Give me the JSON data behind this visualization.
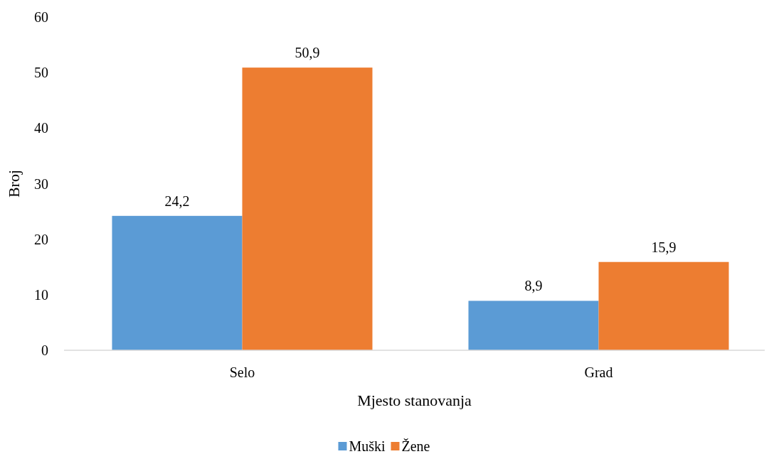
{
  "chart_data": {
    "type": "bar",
    "xlabel": "Mjesto stanovanja",
    "ylabel": "Broj",
    "categories": [
      "Selo",
      "Grad"
    ],
    "series": [
      {
        "name": "Muški",
        "color": "#5b9bd5",
        "values": [
          24.2,
          8.9
        ],
        "value_labels": [
          "24,2",
          "8,9"
        ]
      },
      {
        "name": "Žene",
        "color": "#ed7d31",
        "values": [
          50.9,
          15.9
        ],
        "value_labels": [
          "50,9",
          "15,9"
        ]
      }
    ],
    "ylim": [
      0,
      60
    ],
    "yticks": [
      0,
      10,
      20,
      30,
      40,
      50,
      60
    ],
    "grid": false,
    "legend": "bottom"
  }
}
